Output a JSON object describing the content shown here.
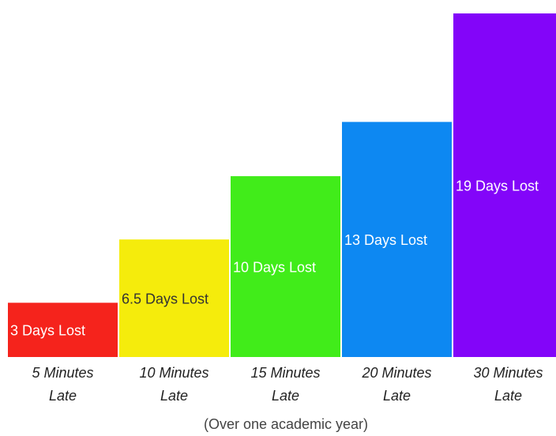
{
  "chart_data": {
    "type": "bar",
    "title": "",
    "xlabel": "(Over one academic year)",
    "ylabel": "",
    "ylim": [
      0,
      19
    ],
    "grid": false,
    "categories": [
      [
        "5 Minutes",
        "Late"
      ],
      [
        "10 Minutes",
        "Late"
      ],
      [
        "15 Minutes",
        "Late"
      ],
      [
        "20 Minutes",
        "Late"
      ],
      [
        "30 Minutes",
        "Late"
      ]
    ],
    "values": [
      3,
      6.5,
      10,
      13,
      19
    ],
    "data_labels": [
      "3 Days Lost",
      "6.5 Days Lost",
      "10 Days Lost",
      "13 Days Lost",
      "19 Days Lost"
    ],
    "colors": [
      "#f5231c",
      "#f5ec0c",
      "#41ec1a",
      "#0d88f2",
      "#8305f9"
    ],
    "label_colors": [
      "#ffffff",
      "#333333",
      "#ffffff",
      "#ffffff",
      "#ffffff"
    ]
  }
}
